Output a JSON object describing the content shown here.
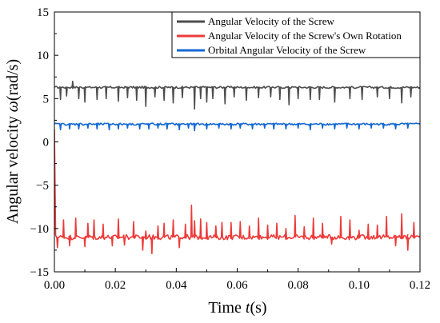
{
  "chart_data": {
    "type": "line",
    "title": "",
    "xlabel": "Time t(s)",
    "xlabel_parts": {
      "pre": "Time ",
      "var": "t",
      "post": "(s)"
    },
    "ylabel": "Angular velocity ω(rad/s)",
    "ylabel_parts": {
      "pre": "Angular velocity ",
      "var": "ω",
      "post": "(rad/s)"
    },
    "xlim": [
      0,
      0.12
    ],
    "ylim": [
      -15,
      15
    ],
    "xticks": [
      "0.00",
      "0.02",
      "0.04",
      "0.06",
      "0.08",
      "0.10",
      "0.12"
    ],
    "yticks": [
      "−15",
      "−10",
      "−5",
      "0",
      "5",
      "10",
      "15"
    ],
    "xtick_values": [
      0,
      0.02,
      0.04,
      0.06,
      0.08,
      0.1,
      0.12
    ],
    "ytick_values": [
      -15,
      -10,
      -5,
      0,
      5,
      10,
      15
    ],
    "grid": false,
    "legend_position": "top-right",
    "series": [
      {
        "name": "Angular Velocity of the Screw",
        "color": "#4d4d4d",
        "baseline": 6.3,
        "initial_value": 6.3,
        "spikes": [
          [
            0.002,
            4.9
          ],
          [
            0.004,
            5.3
          ],
          [
            0.006,
            7.0
          ],
          [
            0.008,
            5.0
          ],
          [
            0.01,
            4.6
          ],
          [
            0.014,
            4.9
          ],
          [
            0.017,
            5.0
          ],
          [
            0.021,
            4.7
          ],
          [
            0.024,
            5.1
          ],
          [
            0.027,
            4.8
          ],
          [
            0.03,
            4.1
          ],
          [
            0.033,
            5.2
          ],
          [
            0.036,
            4.8
          ],
          [
            0.039,
            4.5
          ],
          [
            0.042,
            5.1
          ],
          [
            0.046,
            3.8
          ],
          [
            0.048,
            5.0
          ],
          [
            0.05,
            4.6
          ],
          [
            0.052,
            5.0
          ],
          [
            0.056,
            4.4
          ],
          [
            0.059,
            5.2
          ],
          [
            0.063,
            4.8
          ],
          [
            0.067,
            5.1
          ],
          [
            0.071,
            5.2
          ],
          [
            0.074,
            4.9
          ],
          [
            0.077,
            4.3
          ],
          [
            0.08,
            5.0
          ],
          [
            0.084,
            4.9
          ],
          [
            0.087,
            4.9
          ],
          [
            0.092,
            4.6
          ],
          [
            0.097,
            5.0
          ],
          [
            0.101,
            4.9
          ],
          [
            0.106,
            5.2
          ],
          [
            0.11,
            5.0
          ],
          [
            0.114,
            4.5
          ],
          [
            0.117,
            5.2
          ]
        ]
      },
      {
        "name": "Angular Velocity of the Screw's Own Rotation",
        "color": "#ee3a3a",
        "baseline": -11.0,
        "initial_value": 1.5,
        "spikes": [
          [
            0.001,
            -12.2
          ],
          [
            0.003,
            -9.0
          ],
          [
            0.005,
            -12.0
          ],
          [
            0.007,
            -8.8
          ],
          [
            0.01,
            -12.1
          ],
          [
            0.011,
            -9.4
          ],
          [
            0.013,
            -9.0
          ],
          [
            0.016,
            -9.5
          ],
          [
            0.019,
            -12.0
          ],
          [
            0.021,
            -8.9
          ],
          [
            0.023,
            -11.9
          ],
          [
            0.026,
            -9.2
          ],
          [
            0.029,
            -12.5
          ],
          [
            0.03,
            -10.3
          ],
          [
            0.032,
            -12.9
          ],
          [
            0.034,
            -9.7
          ],
          [
            0.036,
            -9.4
          ],
          [
            0.039,
            -9.0
          ],
          [
            0.041,
            -12.2
          ],
          [
            0.043,
            -9.5
          ],
          [
            0.045,
            -7.3
          ],
          [
            0.046,
            -9.1
          ],
          [
            0.048,
            -8.9
          ],
          [
            0.05,
            -9.3
          ],
          [
            0.053,
            -9.7
          ],
          [
            0.055,
            -9.3
          ],
          [
            0.058,
            -9.3
          ],
          [
            0.061,
            -9.2
          ],
          [
            0.064,
            -9.7
          ],
          [
            0.067,
            -8.8
          ],
          [
            0.07,
            -9.6
          ],
          [
            0.073,
            -9.4
          ],
          [
            0.076,
            -10.0
          ],
          [
            0.079,
            -8.5
          ],
          [
            0.082,
            -9.8
          ],
          [
            0.085,
            -8.8
          ],
          [
            0.088,
            -9.4
          ],
          [
            0.091,
            -11.8
          ],
          [
            0.094,
            -8.6
          ],
          [
            0.097,
            -9.0
          ],
          [
            0.1,
            -10.2
          ],
          [
            0.103,
            -9.5
          ],
          [
            0.106,
            -9.6
          ],
          [
            0.109,
            -8.6
          ],
          [
            0.112,
            -12.0
          ],
          [
            0.114,
            -8.3
          ],
          [
            0.116,
            -12.5
          ],
          [
            0.118,
            -9.3
          ]
        ]
      },
      {
        "name": "Orbital Angular Velocity of the Screw",
        "color": "#1469d2",
        "baseline": 2.05,
        "initial_value": 2.05,
        "spikes": [
          [
            0.002,
            1.4
          ],
          [
            0.005,
            1.5
          ],
          [
            0.008,
            1.5
          ],
          [
            0.011,
            1.6
          ],
          [
            0.014,
            1.5
          ],
          [
            0.018,
            1.4
          ],
          [
            0.021,
            1.5
          ],
          [
            0.024,
            1.6
          ],
          [
            0.028,
            1.5
          ],
          [
            0.031,
            1.5
          ],
          [
            0.034,
            1.6
          ],
          [
            0.037,
            1.5
          ],
          [
            0.041,
            1.4
          ],
          [
            0.044,
            1.6
          ],
          [
            0.046,
            1.3
          ],
          [
            0.05,
            1.5
          ],
          [
            0.054,
            1.6
          ],
          [
            0.058,
            1.5
          ],
          [
            0.061,
            1.6
          ],
          [
            0.065,
            1.5
          ],
          [
            0.069,
            1.6
          ],
          [
            0.072,
            1.5
          ],
          [
            0.076,
            1.5
          ],
          [
            0.08,
            1.6
          ],
          [
            0.084,
            1.4
          ],
          [
            0.088,
            1.6
          ],
          [
            0.092,
            1.5
          ],
          [
            0.096,
            1.6
          ],
          [
            0.1,
            1.5
          ],
          [
            0.104,
            1.6
          ],
          [
            0.108,
            1.6
          ],
          [
            0.112,
            1.5
          ],
          [
            0.116,
            1.6
          ]
        ]
      }
    ]
  }
}
